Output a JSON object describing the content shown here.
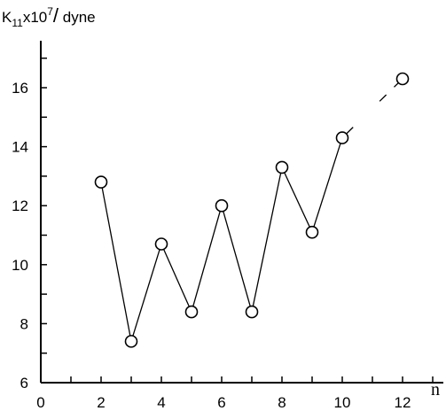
{
  "chart_data": {
    "type": "line",
    "ylabel": "K11x10^7/ dyne",
    "xlabel": "n",
    "xlim": [
      0,
      13
    ],
    "ylim": [
      6,
      17.5
    ],
    "x_ticks": [
      0,
      2,
      4,
      6,
      8,
      10,
      12
    ],
    "y_ticks": [
      6,
      8,
      10,
      12,
      14,
      16
    ],
    "grid": false,
    "series": [
      {
        "x": [
          2,
          3,
          4,
          5,
          6,
          7,
          8,
          9,
          10,
          12
        ],
        "y": [
          12.8,
          7.4,
          10.7,
          8.4,
          12.0,
          8.4,
          13.3,
          11.1,
          14.3,
          16.3
        ],
        "marker": "open-circle",
        "color": "#000000"
      }
    ],
    "annotations": [
      {
        "type": "broken-line",
        "from": [
          10,
          14.3
        ],
        "to": [
          12,
          16.3
        ]
      }
    ]
  }
}
